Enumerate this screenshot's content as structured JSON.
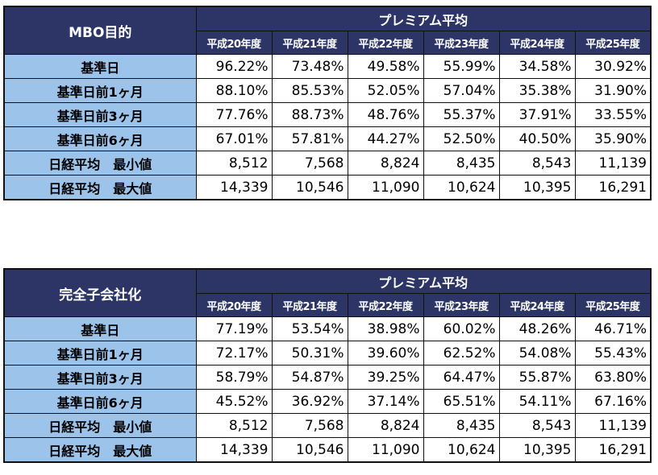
{
  "tables": [
    {
      "corner": "MBO目的",
      "group_header": "プレミアム平均",
      "years": [
        "平成20年度",
        "平成21年度",
        "平成22年度",
        "平成23年度",
        "平成24年度",
        "平成25年度"
      ],
      "rows": [
        {
          "label": "基準日",
          "values": [
            "96.22%",
            "73.48%",
            "49.58%",
            "55.99%",
            "34.58%",
            "30.92%"
          ]
        },
        {
          "label": "基準日前1ヶ月",
          "values": [
            "88.10%",
            "85.53%",
            "52.05%",
            "57.04%",
            "35.38%",
            "31.90%"
          ]
        },
        {
          "label": "基準日前3ヶ月",
          "values": [
            "77.76%",
            "88.73%",
            "48.76%",
            "55.37%",
            "37.91%",
            "33.55%"
          ]
        },
        {
          "label": "基準日前6ヶ月",
          "values": [
            "67.01%",
            "57.81%",
            "44.27%",
            "52.50%",
            "40.50%",
            "35.90%"
          ]
        },
        {
          "label": "日経平均　最小値",
          "values": [
            "8,512",
            "7,568",
            "8,824",
            "8,435",
            "8,543",
            "11,139"
          ]
        },
        {
          "label": "日経平均　最大値",
          "values": [
            "14,339",
            "10,546",
            "11,090",
            "10,624",
            "10,395",
            "16,291"
          ]
        }
      ]
    },
    {
      "corner": "完全子会社化",
      "group_header": "プレミアム平均",
      "years": [
        "平成20年度",
        "平成21年度",
        "平成22年度",
        "平成23年度",
        "平成24年度",
        "平成25年度"
      ],
      "rows": [
        {
          "label": "基準日",
          "values": [
            "77.19%",
            "53.54%",
            "38.98%",
            "60.02%",
            "48.26%",
            "46.71%"
          ]
        },
        {
          "label": "基準日前1ヶ月",
          "values": [
            "72.17%",
            "50.31%",
            "39.60%",
            "62.52%",
            "54.08%",
            "55.43%"
          ]
        },
        {
          "label": "基準日前3ヶ月",
          "values": [
            "58.79%",
            "54.87%",
            "39.25%",
            "64.47%",
            "55.87%",
            "63.80%"
          ]
        },
        {
          "label": "基準日前6ヶ月",
          "values": [
            "45.52%",
            "36.92%",
            "37.14%",
            "65.51%",
            "54.11%",
            "67.16%"
          ]
        },
        {
          "label": "日経平均　最小値",
          "values": [
            "8,512",
            "7,568",
            "8,824",
            "8,435",
            "8,543",
            "11,139"
          ]
        },
        {
          "label": "日経平均　最大値",
          "values": [
            "14,339",
            "10,546",
            "11,090",
            "10,624",
            "10,395",
            "16,291"
          ]
        }
      ]
    }
  ],
  "colors": {
    "header_bg": "#2c3565",
    "header_text": "#ffffff",
    "row_label_bg": "#9cc3ea",
    "cell_bg": "#ffffff"
  }
}
